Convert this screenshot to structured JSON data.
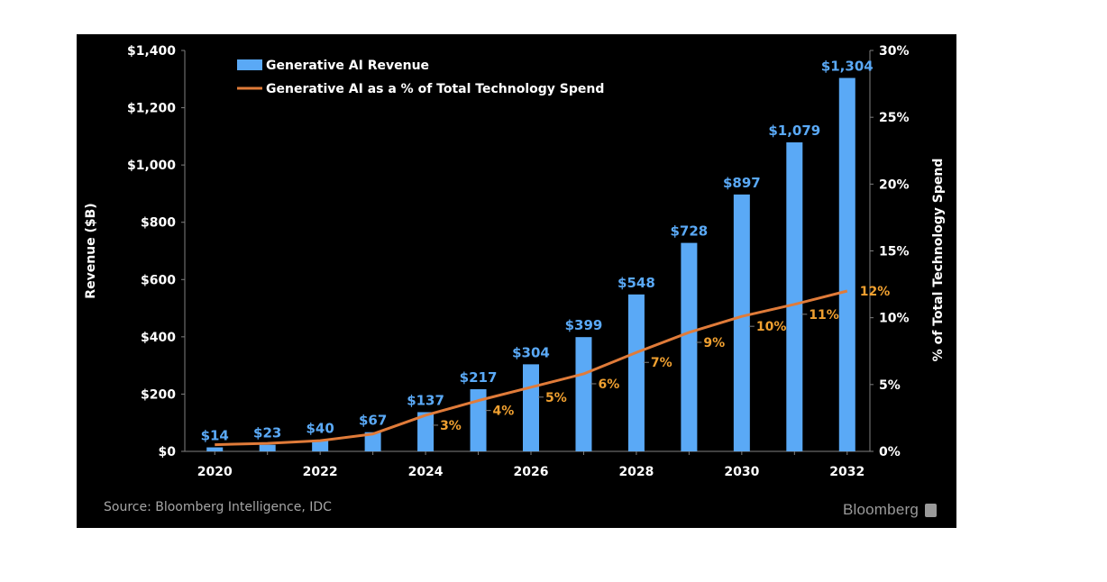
{
  "source": "Source: Bloomberg Intelligence, IDC",
  "brand": "Bloomberg",
  "colors": {
    "bar": "#5aa9f6",
    "line": "#e07b39",
    "line_label": "#f0a030",
    "bar_label": "#5aa9f6",
    "text": "#ffffff",
    "background": "#000000"
  },
  "chart_data": {
    "type": "bar",
    "categories": [
      "2020",
      "2021",
      "2022",
      "2023",
      "2024",
      "2025",
      "2026",
      "2027",
      "2028",
      "2029",
      "2030",
      "2031",
      "2032"
    ],
    "x_tick_labels": [
      "2020",
      "2022",
      "2024",
      "2026",
      "2028",
      "2030",
      "2032"
    ],
    "ylabel": "Revenue ($B)",
    "y2label": "% of Total Technology Spend",
    "ylim": [
      0,
      1400
    ],
    "y_ticks": [
      "$0",
      "$200",
      "$400",
      "$600",
      "$800",
      "$1,000",
      "$1,200",
      "$1,400"
    ],
    "y_tick_values": [
      0,
      200,
      400,
      600,
      800,
      1000,
      1200,
      1400
    ],
    "y2lim": [
      0,
      30
    ],
    "y2_ticks": [
      "0%",
      "5%",
      "10%",
      "15%",
      "20%",
      "25%",
      "30%"
    ],
    "y2_tick_values": [
      0,
      5,
      10,
      15,
      20,
      25,
      30
    ],
    "legend_position": "top-left",
    "series": [
      {
        "name": "Generative AI Revenue",
        "type": "bar",
        "axis": "left",
        "values": [
          14,
          23,
          40,
          67,
          137,
          217,
          304,
          399,
          548,
          728,
          897,
          1079,
          1304
        ],
        "labels": [
          "$14",
          "$23",
          "$40",
          "$67",
          "$137",
          "$217",
          "$304",
          "$399",
          "$548",
          "$728",
          "$897",
          "$1,079",
          "$1,304"
        ]
      },
      {
        "name": "Generative AI as a % of Total Technology Spend",
        "type": "line",
        "axis": "right",
        "values": [
          0.5,
          0.6,
          0.8,
          1.3,
          2.7,
          3.8,
          4.8,
          5.8,
          7.4,
          8.9,
          10.1,
          11.0,
          12.0
        ],
        "labels": [
          "",
          "",
          "",
          "",
          "3%",
          "4%",
          "5%",
          "6%",
          "7%",
          "9%",
          "10%",
          "11%",
          "12%"
        ]
      }
    ]
  }
}
